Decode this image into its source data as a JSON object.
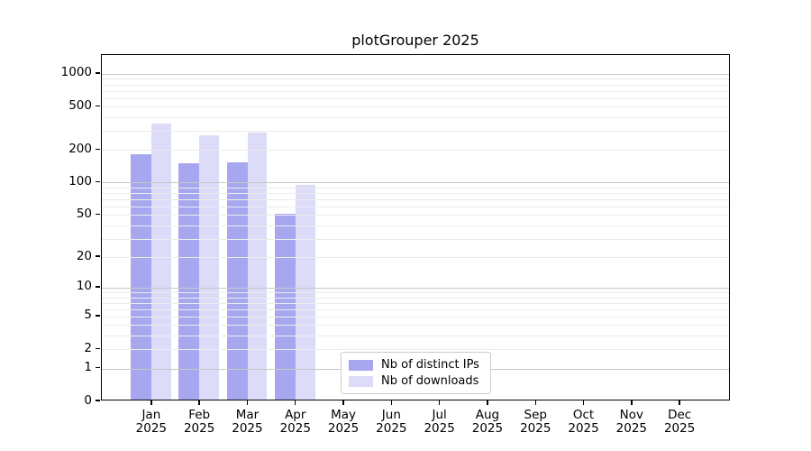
{
  "chart_data": {
    "type": "bar",
    "title": "plotGrouper 2025",
    "categories": [
      "Jan",
      "Feb",
      "Mar",
      "Apr",
      "May",
      "Jun",
      "Jul",
      "Aug",
      "Sep",
      "Oct",
      "Nov",
      "Dec"
    ],
    "x_tick_second_line": "2025",
    "series": [
      {
        "name": "Nb of distinct IPs",
        "color": "#a7a7f0",
        "values": [
          175,
          144,
          148,
          49,
          0,
          0,
          0,
          0,
          0,
          0,
          0,
          0
        ]
      },
      {
        "name": "Nb of downloads",
        "color": "#dcdcf8",
        "values": [
          335,
          265,
          280,
          91,
          0,
          0,
          0,
          0,
          0,
          0,
          0,
          0
        ]
      }
    ],
    "y_scale": "log1p",
    "y_ticks": [
      0,
      1,
      2,
      5,
      10,
      20,
      50,
      100,
      200,
      500,
      1000
    ],
    "grid_major": [
      1,
      10,
      100,
      1000
    ],
    "grid_minor": [
      2,
      3,
      4,
      5,
      6,
      7,
      8,
      9,
      20,
      30,
      40,
      50,
      60,
      70,
      80,
      90,
      200,
      300,
      400,
      500,
      600,
      700,
      800,
      900
    ],
    "y_axis_top_value": 1500,
    "grid_on": true,
    "legend_position": "inside-bottom-center"
  },
  "colors": {
    "grid_minor": "#ececec",
    "grid_major": "#c8c8c8",
    "axis": "#000000",
    "legend_border": "#cccccc",
    "background": "#ffffff"
  }
}
